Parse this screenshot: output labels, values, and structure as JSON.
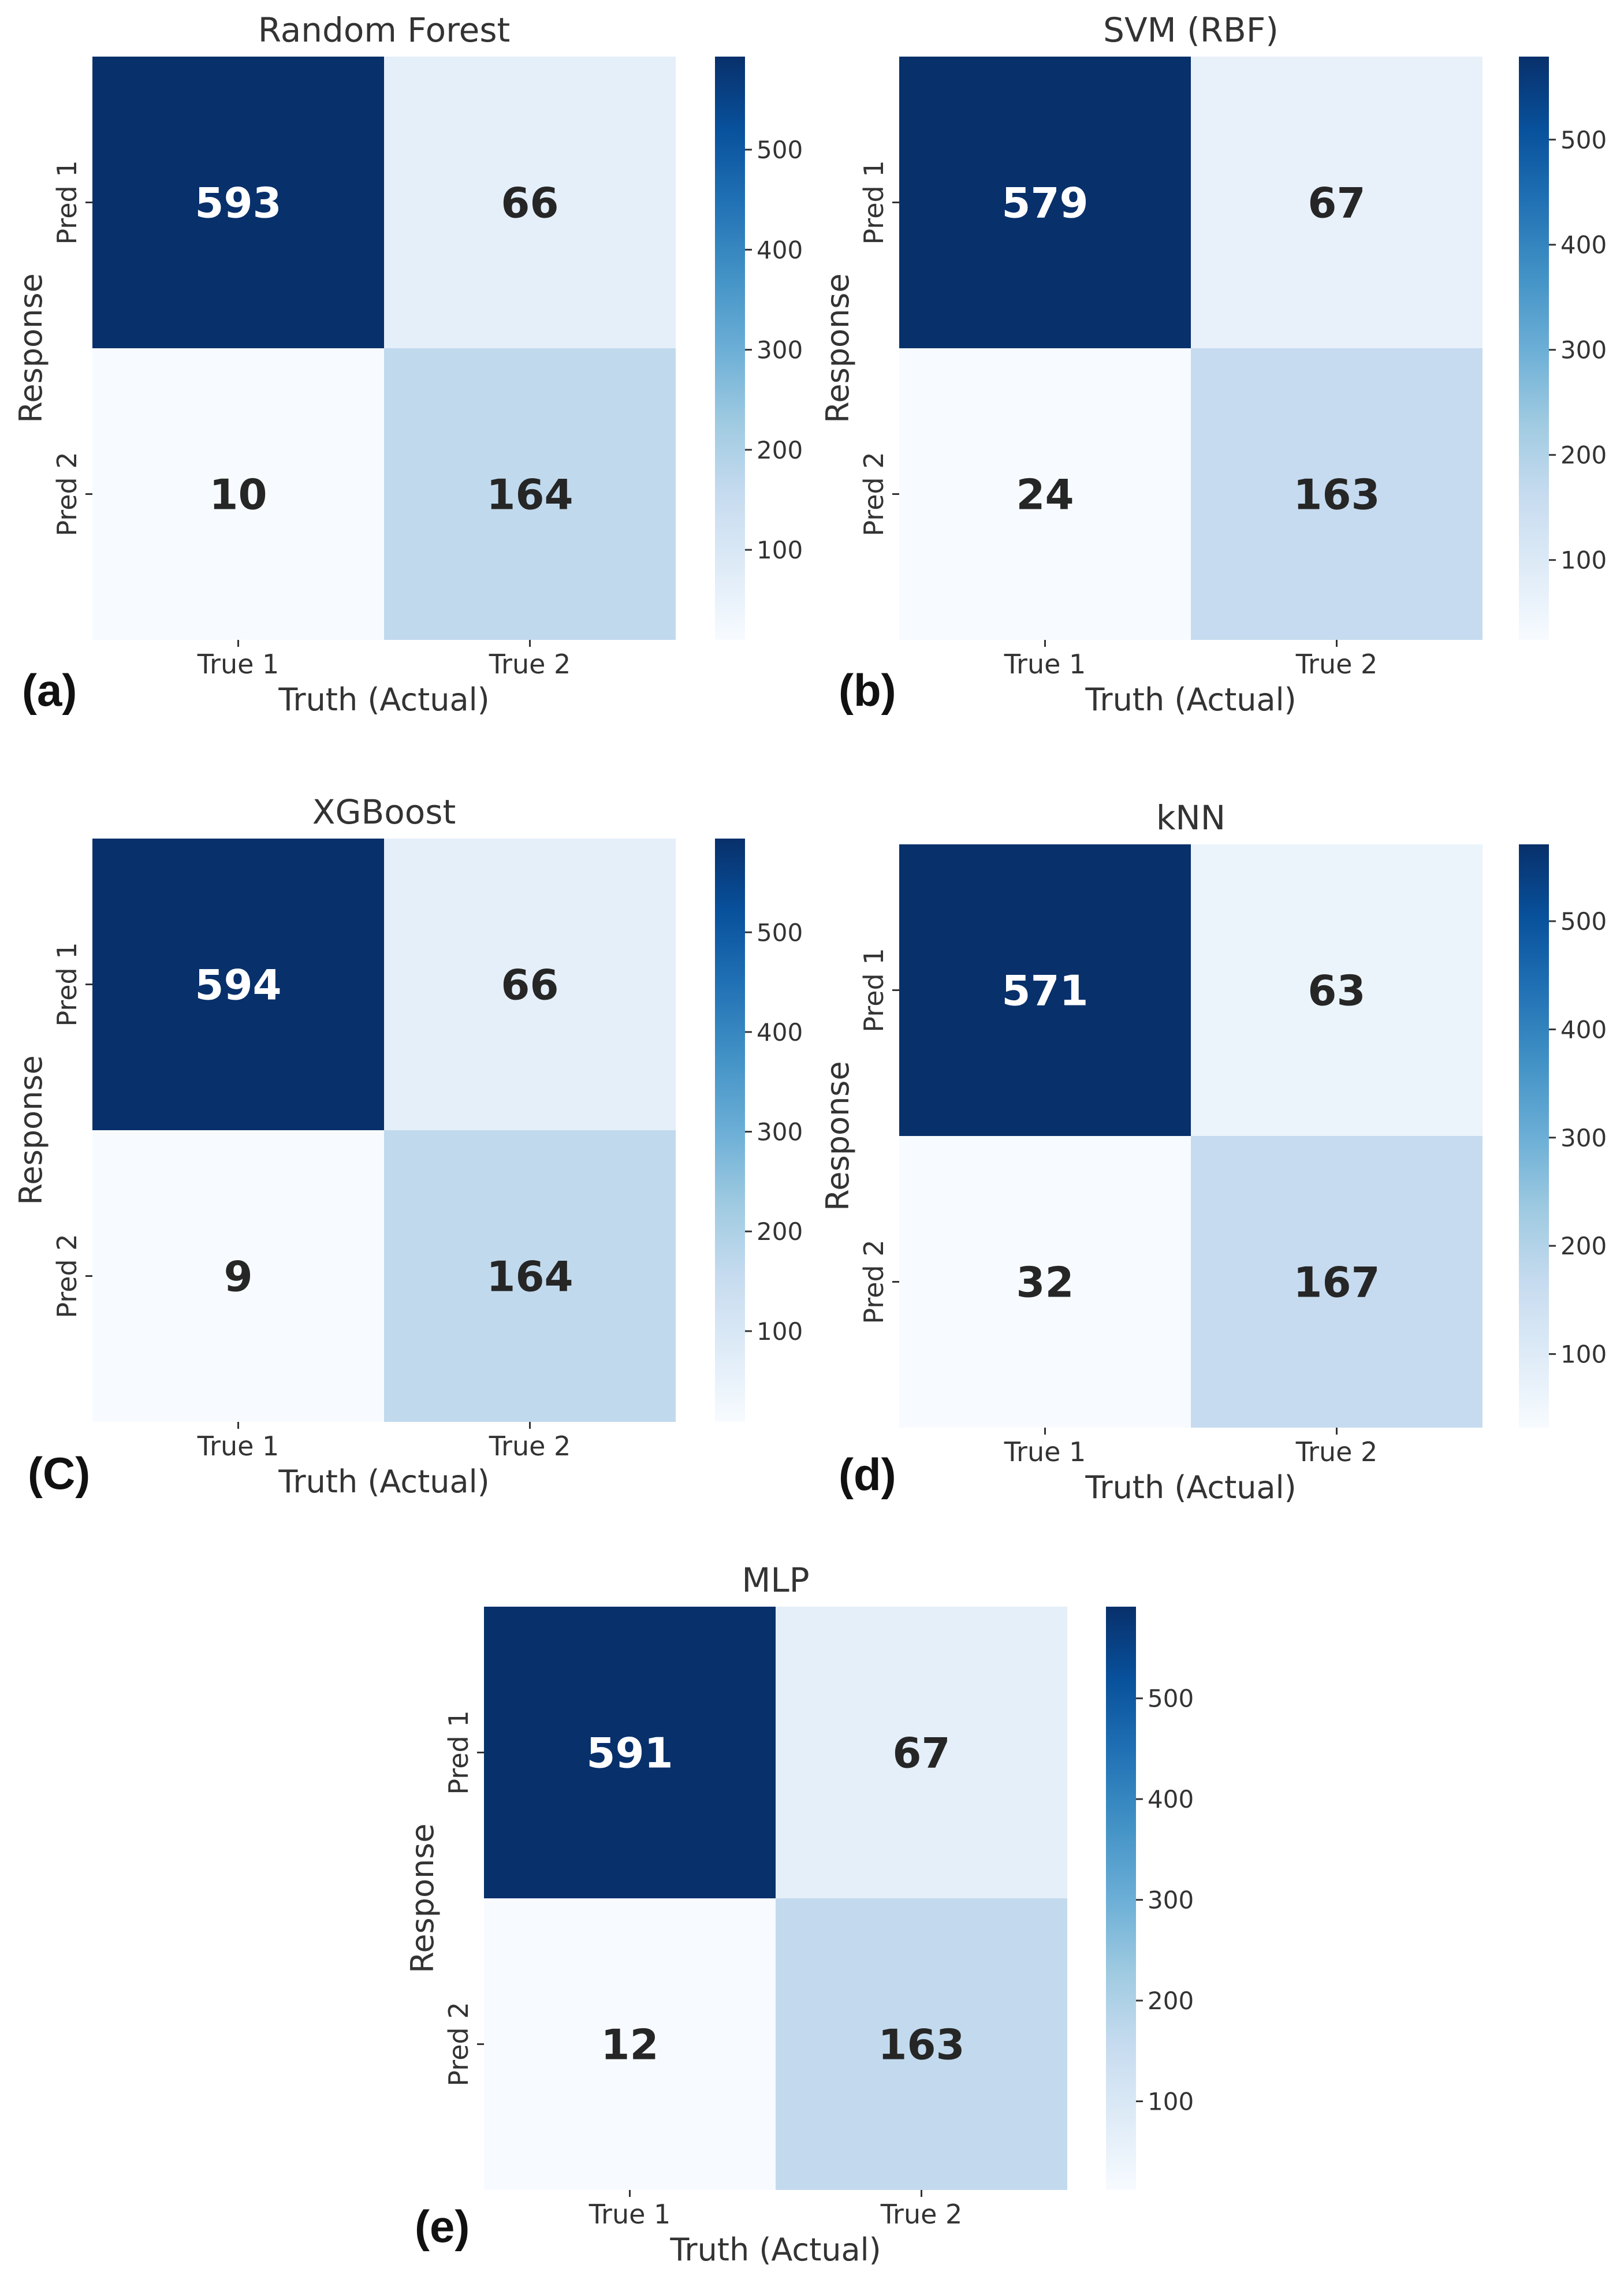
{
  "colormap": {
    "name": "Blues",
    "low": "#f7fbff",
    "high": "#08306b"
  },
  "chart_data": [
    {
      "type": "heatmap",
      "panel_label": "(a)",
      "title": "Random Forest",
      "xlabel": "Truth (Actual)",
      "ylabel": "Response",
      "x_categories": [
        "True 1",
        "True 2"
      ],
      "y_categories": [
        "Pred 1",
        "Pred 2"
      ],
      "matrix": [
        [
          593,
          66
        ],
        [
          10,
          164
        ]
      ],
      "colorbar_ticks": [
        100,
        200,
        300,
        400,
        500
      ]
    },
    {
      "type": "heatmap",
      "panel_label": "(b)",
      "title": "SVM (RBF)",
      "xlabel": "Truth (Actual)",
      "ylabel": "Response",
      "x_categories": [
        "True 1",
        "True 2"
      ],
      "y_categories": [
        "Pred 1",
        "Pred 2"
      ],
      "matrix": [
        [
          579,
          67
        ],
        [
          24,
          163
        ]
      ],
      "colorbar_ticks": [
        100,
        200,
        300,
        400,
        500
      ]
    },
    {
      "type": "heatmap",
      "panel_label": "(C)",
      "title": "XGBoost",
      "xlabel": "Truth (Actual)",
      "ylabel": "Response",
      "x_categories": [
        "True 1",
        "True 2"
      ],
      "y_categories": [
        "Pred 1",
        "Pred 2"
      ],
      "matrix": [
        [
          594,
          66
        ],
        [
          9,
          164
        ]
      ],
      "colorbar_ticks": [
        100,
        200,
        300,
        400,
        500
      ]
    },
    {
      "type": "heatmap",
      "panel_label": "(d)",
      "title": "kNN",
      "xlabel": "Truth (Actual)",
      "ylabel": "Response",
      "x_categories": [
        "True 1",
        "True 2"
      ],
      "y_categories": [
        "Pred 1",
        "Pred 2"
      ],
      "matrix": [
        [
          571,
          63
        ],
        [
          32,
          167
        ]
      ],
      "colorbar_ticks": [
        100,
        200,
        300,
        400,
        500
      ]
    },
    {
      "type": "heatmap",
      "panel_label": "(e)",
      "title": "MLP",
      "xlabel": "Truth (Actual)",
      "ylabel": "Response",
      "x_categories": [
        "True 1",
        "True 2"
      ],
      "y_categories": [
        "Pred 1",
        "Pred 2"
      ],
      "matrix": [
        [
          591,
          67
        ],
        [
          12,
          163
        ]
      ],
      "colorbar_ticks": [
        100,
        200,
        300,
        400,
        500
      ]
    }
  ]
}
